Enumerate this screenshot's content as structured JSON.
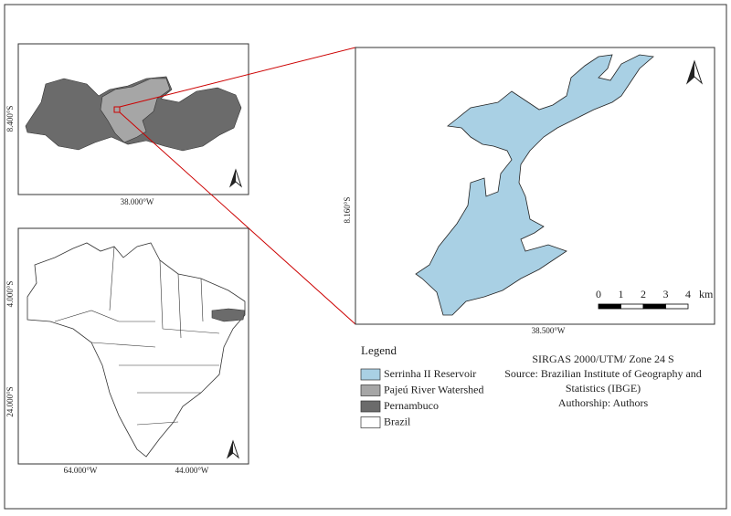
{
  "inset_map": {
    "lat_label": "8.400°S",
    "lon_label": "38.000°W"
  },
  "brazil_map": {
    "lat_labels": [
      "4.000°S",
      "24.000°S"
    ],
    "lon_labels": [
      "64.000°W",
      "44.000°W"
    ]
  },
  "main_map": {
    "lat_label": "8.160°S",
    "lon_label": "38.500°W",
    "scale_bar": {
      "ticks": [
        0,
        1,
        2,
        3,
        4
      ],
      "unit": "km"
    }
  },
  "legend": {
    "title": "Legend",
    "items": [
      {
        "label": "Serrinha II Reservoir",
        "color": "#a9d0e4"
      },
      {
        "label": "Pajeú River Watershed",
        "color": "#a6a6a6"
      },
      {
        "label": "Pernambuco",
        "color": "#6b6b6b"
      },
      {
        "label": "Brazil",
        "color": "#ffffff"
      }
    ]
  },
  "notes": [
    "SIRGAS 2000/UTM/ Zone 24 S",
    "Source: Brazilian Institute of Geography and",
    "Statistics (IBGE)",
    "Authorship: Authors"
  ]
}
